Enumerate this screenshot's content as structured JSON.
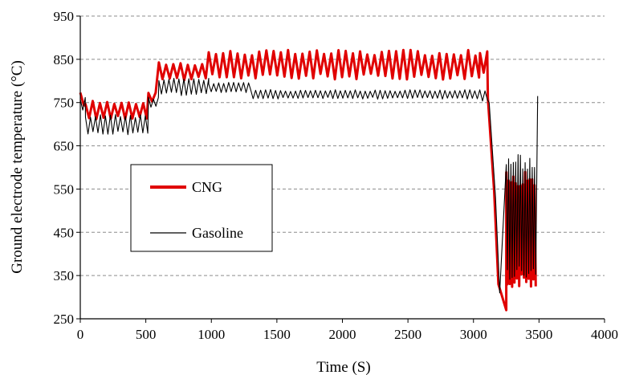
{
  "chart_data": {
    "type": "line",
    "title": "",
    "xlabel": "Time (S)",
    "ylabel": "Ground electrode temperature (°C)",
    "xlim": [
      0,
      4000
    ],
    "ylim": [
      250,
      950
    ],
    "xticks": [
      "0",
      "500",
      "1000",
      "1500",
      "2000",
      "2500",
      "3000",
      "3500",
      "4000"
    ],
    "yticks": [
      "250",
      "350",
      "450",
      "550",
      "650",
      "750",
      "850",
      "950"
    ],
    "grid": "horizontal dashed",
    "legend_position": "middle-left",
    "series": [
      {
        "name": "CNG",
        "color": "#e00000",
        "segments": [
          {
            "x_start": 0,
            "x_end": 40,
            "min": 740,
            "max": 770
          },
          {
            "x_start": 40,
            "x_end": 520,
            "min": 715,
            "max": 750
          },
          {
            "x_start": 520,
            "x_end": 600,
            "min": 750,
            "max": 775
          },
          {
            "x_start": 600,
            "x_end": 980,
            "min": 805,
            "max": 840
          },
          {
            "x_start": 980,
            "x_end": 3050,
            "min": 810,
            "max": 865
          },
          {
            "x_start": 3050,
            "x_end": 3110,
            "min": 820,
            "max": 870
          }
        ],
        "drop": {
          "x_start": 3110,
          "x_end": 3190,
          "from": 760,
          "to": 330
        },
        "min_point": {
          "x": 3250,
          "y": 270
        },
        "oscillation": {
          "x_start": 3250,
          "x_end": 3480,
          "min": 320,
          "max": 590
        }
      },
      {
        "name": "Gasoline",
        "color": "#000000",
        "segments": [
          {
            "x_start": 0,
            "x_end": 40,
            "min": 730,
            "max": 760
          },
          {
            "x_start": 40,
            "x_end": 520,
            "min": 680,
            "max": 720
          },
          {
            "x_start": 520,
            "x_end": 600,
            "min": 740,
            "max": 760
          },
          {
            "x_start": 600,
            "x_end": 980,
            "min": 770,
            "max": 805
          },
          {
            "x_start": 980,
            "x_end": 1300,
            "min": 775,
            "max": 795
          },
          {
            "x_start": 1300,
            "x_end": 3050,
            "min": 760,
            "max": 778
          },
          {
            "x_start": 3050,
            "x_end": 3120,
            "min": 755,
            "max": 778
          }
        ],
        "drop": {
          "x_start": 3120,
          "x_end": 3200,
          "from": 750,
          "to": 310
        },
        "oscillation": {
          "x_start": 3250,
          "x_end": 3480,
          "min": 340,
          "max": 630
        },
        "end_spike": {
          "x": 3490,
          "y": 765
        }
      }
    ],
    "legend": [
      {
        "label": "CNG",
        "color": "#e00000"
      },
      {
        "label": "Gasoline",
        "color": "#000000"
      }
    ]
  }
}
